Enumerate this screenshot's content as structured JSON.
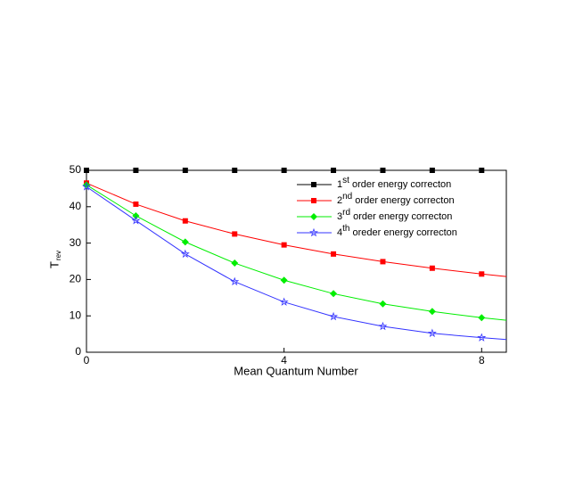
{
  "chart_data": {
    "type": "line",
    "xlabel": "Mean Quantum Number",
    "ylabel": "T",
    "ylabel_sub": "rev",
    "x": [
      0,
      1,
      2,
      3,
      4,
      5,
      6,
      7,
      8,
      8.5
    ],
    "series": [
      {
        "name": "1st order energy correcton",
        "color": "#000000",
        "marker": "square",
        "values": [
          50,
          50,
          50,
          50,
          50,
          50,
          50,
          50,
          50,
          50
        ]
      },
      {
        "name": "2nd order energy correcton",
        "color": "#ff0000",
        "marker": "square",
        "values": [
          46.5,
          40.7,
          36.1,
          32.5,
          29.5,
          27,
          24.9,
          23.1,
          21.5,
          20.8
        ]
      },
      {
        "name": "3rd order energy correcton",
        "color": "#00ee00",
        "marker": "diamond",
        "values": [
          46,
          37.5,
          30.3,
          24.5,
          19.8,
          16.1,
          13.3,
          11.2,
          9.5,
          8.8
        ]
      },
      {
        "name": "4th oreder energy correcton",
        "color": "#3333ff",
        "marker": "star",
        "values": [
          45.5,
          36.2,
          27,
          19.4,
          13.8,
          9.8,
          7.1,
          5.2,
          4,
          3.5
        ]
      }
    ],
    "xlim": [
      0,
      8.5
    ],
    "xticks": [
      0,
      4,
      8
    ],
    "ylim": [
      0,
      50
    ],
    "yticks": [
      0,
      10,
      20,
      30,
      40,
      50
    ],
    "legend": "top-right"
  }
}
